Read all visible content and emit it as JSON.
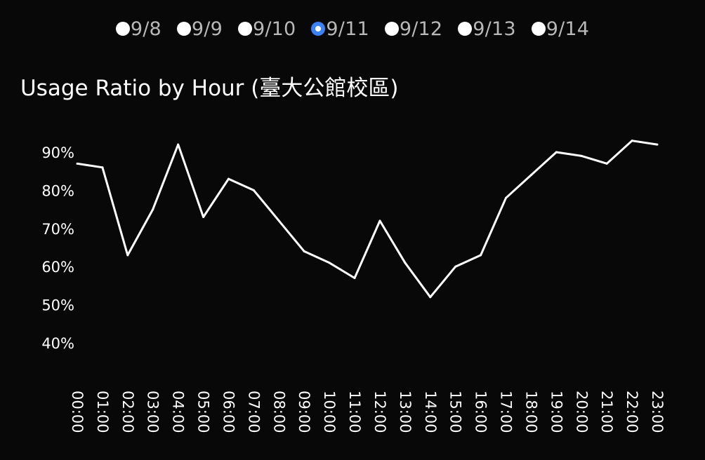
{
  "date_selector": {
    "options": [
      {
        "label": "9/8",
        "selected": false
      },
      {
        "label": "9/9",
        "selected": false
      },
      {
        "label": "9/10",
        "selected": false
      },
      {
        "label": "9/11",
        "selected": true
      },
      {
        "label": "9/12",
        "selected": false
      },
      {
        "label": "9/13",
        "selected": false
      },
      {
        "label": "9/14",
        "selected": false
      }
    ],
    "selected_color": "#3b82f6"
  },
  "chart_data": {
    "type": "line",
    "title": "Usage Ratio by Hour (臺大公館校區)",
    "xlabel": "",
    "ylabel": "",
    "categories": [
      "00:00",
      "01:00",
      "02:00",
      "03:00",
      "04:00",
      "05:00",
      "06:00",
      "07:00",
      "08:00",
      "09:00",
      "10:00",
      "11:00",
      "12:00",
      "13:00",
      "14:00",
      "15:00",
      "16:00",
      "17:00",
      "18:00",
      "19:00",
      "20:00",
      "21:00",
      "22:00",
      "23:00"
    ],
    "series": [
      {
        "values": [
          0.87,
          0.86,
          0.63,
          0.75,
          0.92,
          0.73,
          0.83,
          0.8,
          0.72,
          0.64,
          0.61,
          0.57,
          0.72,
          0.61,
          0.52,
          0.6,
          0.63,
          0.78,
          0.84,
          0.9,
          0.89,
          0.87,
          0.93,
          0.92
        ]
      }
    ],
    "yticks": [
      "40%",
      "50%",
      "60%",
      "70%",
      "80%",
      "90%"
    ],
    "ytick_values": [
      0.4,
      0.5,
      0.6,
      0.7,
      0.8,
      0.9
    ],
    "ylim": [
      0.4,
      0.9
    ],
    "grid": false,
    "line_color": "#ffffff",
    "background": "#080808"
  }
}
